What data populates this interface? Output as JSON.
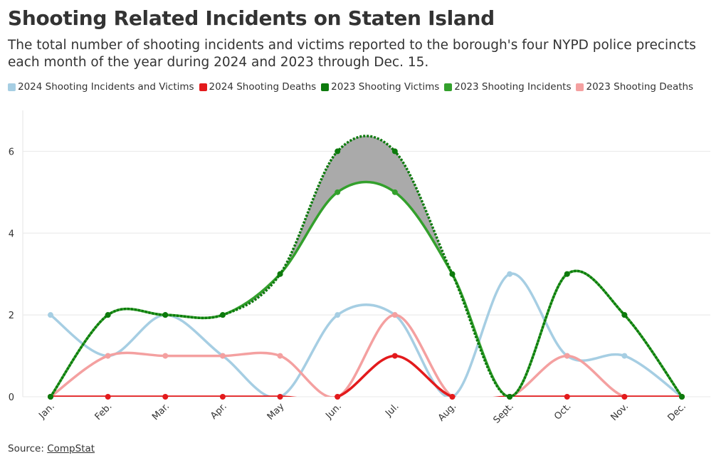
{
  "header": {
    "title": "Shooting Related Incidents on Staten Island",
    "subtitle": "The total number of shooting incidents and victims reported to the borough's four NYPD police precincts each month of the year during 2024 and 2023 through Dec. 15."
  },
  "footer": {
    "source_label": "Source: ",
    "source_link": "CompStat"
  },
  "chart_data": {
    "type": "line",
    "categories": [
      "Jan.",
      "Feb.",
      "Mar.",
      "Apr.",
      "May",
      "Jun.",
      "Jul.",
      "Aug.",
      "Sept.",
      "Oct.",
      "Nov.",
      "Dec."
    ],
    "ylim": [
      0,
      7
    ],
    "yticks": [
      0,
      2,
      4,
      6
    ],
    "grid": true,
    "legend_position": "top-left",
    "title": "",
    "xlabel": "",
    "ylabel": "",
    "series": [
      {
        "name": "2024 Shooting Incidents and Victims",
        "color": "#a6cee3",
        "values": [
          2,
          1,
          2,
          1,
          0,
          2,
          2,
          0,
          3,
          1,
          1,
          0
        ]
      },
      {
        "name": "2024 Shooting Deaths",
        "color": "#e31a1c",
        "values": [
          0,
          0,
          0,
          0,
          0,
          0,
          1,
          0,
          0,
          0,
          0,
          0
        ]
      },
      {
        "name": "2023 Shooting Victims",
        "color": "#0d7a0d",
        "style": "dotted",
        "values": [
          0,
          2,
          2,
          2,
          3,
          6,
          6,
          3,
          0,
          3,
          2,
          0
        ]
      },
      {
        "name": "2023 Shooting Incidents",
        "color": "#33a02c",
        "values": [
          0,
          2,
          2,
          2,
          3,
          5,
          5,
          3,
          0,
          3,
          2,
          0
        ]
      },
      {
        "name": "2023 Shooting Deaths",
        "color": "#f4a0a0",
        "values": [
          0,
          1,
          1,
          1,
          1,
          0,
          2,
          0,
          0,
          1,
          0,
          0
        ]
      }
    ],
    "shaded_band": {
      "upper_series": "2023 Shooting Victims",
      "lower_series": "2023 Shooting Incidents",
      "color": "#aaaaaa"
    }
  }
}
